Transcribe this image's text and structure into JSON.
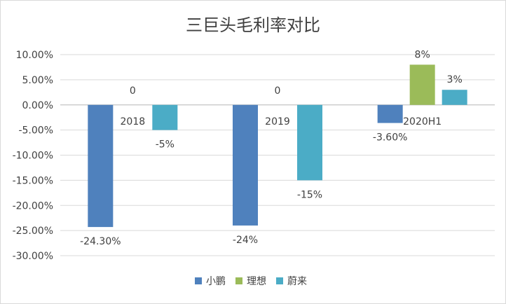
{
  "chart_data": {
    "type": "bar",
    "title": "三巨头毛利率对比",
    "categories": [
      "2018",
      "2019",
      "2020H1"
    ],
    "series": [
      {
        "name": "小鹏",
        "color": "#4f81bd",
        "values": [
          -24.3,
          -24,
          -3.6
        ],
        "labels": [
          "-24.30%",
          "-24%",
          "-3.60%"
        ]
      },
      {
        "name": "理想",
        "color": "#9bbb59",
        "values": [
          0,
          0,
          8
        ],
        "labels": [
          "0",
          "0",
          "8%"
        ]
      },
      {
        "name": "蔚来",
        "color": "#4bacc6",
        "values": [
          -5,
          -15,
          3
        ],
        "labels": [
          "-5%",
          "-15%",
          "3%"
        ]
      }
    ],
    "ylim": [
      -30,
      10
    ],
    "yticks": [
      "10.00%",
      "5.00%",
      "0.00%",
      "-5.00%",
      "-10.00%",
      "-15.00%",
      "-20.00%",
      "-25.00%",
      "-30.00%"
    ],
    "ytick_values": [
      10,
      5,
      0,
      -5,
      -10,
      -15,
      -20,
      -25,
      -30
    ],
    "grid": true,
    "legend_position": "bottom"
  }
}
